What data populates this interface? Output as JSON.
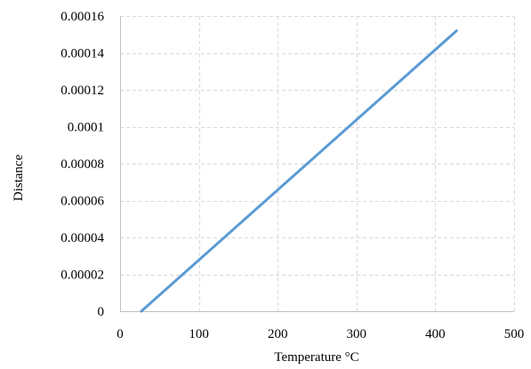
{
  "chart_data": {
    "type": "line",
    "title": "",
    "xlabel": "Temperature °C",
    "ylabel": "Distance",
    "xlim": [
      0,
      500
    ],
    "ylim": [
      0,
      0.00016
    ],
    "x_ticks": [
      0,
      100,
      200,
      300,
      400,
      500
    ],
    "x_tick_labels": [
      "0",
      "100",
      "200",
      "300",
      "400",
      "500"
    ],
    "y_ticks": [
      0,
      2e-05,
      4e-05,
      6e-05,
      8e-05,
      0.0001,
      0.00012,
      0.00014,
      0.00016
    ],
    "y_tick_labels": [
      "0",
      "0.00002",
      "0.00004",
      "0.00006",
      "0.00008",
      "0.0001",
      "0.00012",
      "0.00014",
      "0.00016"
    ],
    "grid": true,
    "legend": "none",
    "series": [
      {
        "color": "#5b9bd5",
        "x": [
          27,
          427
        ],
        "y": [
          0,
          0.000152
        ]
      }
    ]
  }
}
